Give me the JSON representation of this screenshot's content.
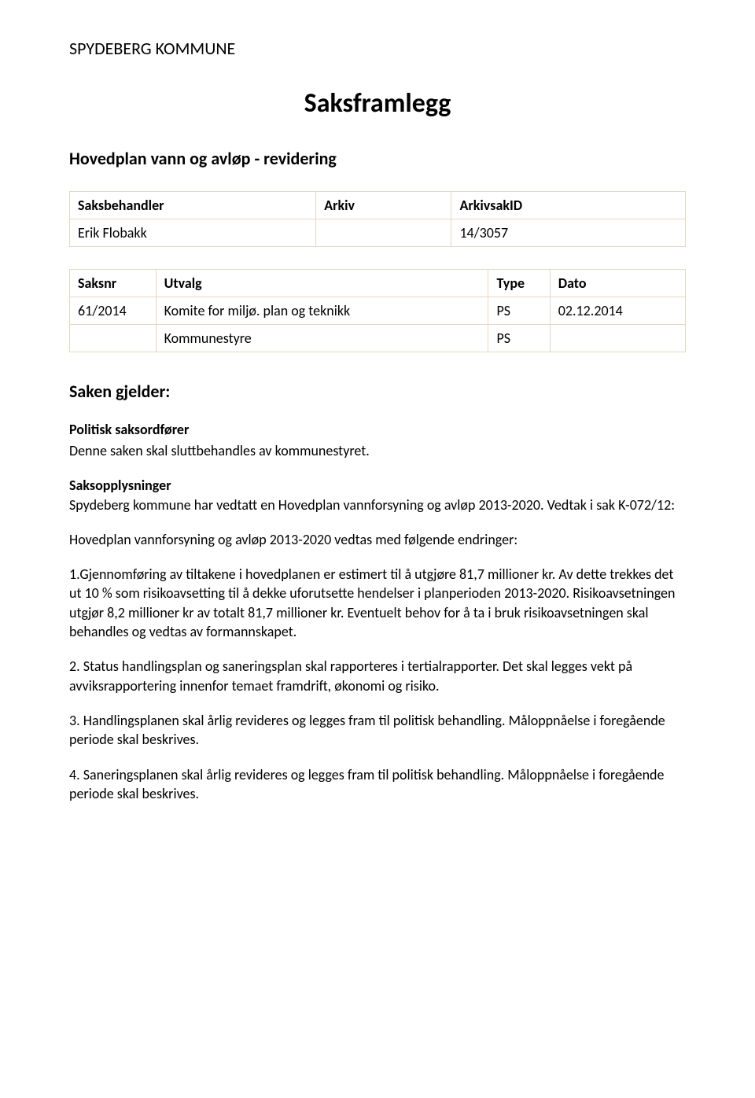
{
  "org_name": "SPYDEBERG KOMMUNE",
  "doc_title": "Saksframlegg",
  "subject_title": "Hovedplan vann og avløp - revidering",
  "table1": {
    "headers": [
      "Saksbehandler",
      "Arkiv",
      "ArkivsakID"
    ],
    "row": [
      "Erik Flobakk",
      "",
      "14/3057"
    ]
  },
  "table2": {
    "headers": [
      "Saksnr",
      "Utvalg",
      "Type",
      "Dato"
    ],
    "rows": [
      [
        "61/2014",
        "Komite for miljø. plan og teknikk",
        "PS",
        "02.12.2014"
      ],
      [
        "",
        "Kommunestyre",
        "PS",
        ""
      ]
    ]
  },
  "section_heading": "Saken gjelder:",
  "politisk_heading": "Politisk saksordfører",
  "politisk_body": "Denne saken skal sluttbehandles av kommunestyret.",
  "sakso_heading": "Saksopplysninger",
  "sakso_line1": "Spydeberg kommune har vedtatt en Hovedplan vannforsyning og avløp 2013-2020. Vedtak i sak K-072/12:",
  "hp_line": "Hovedplan vannforsyning og avløp 2013-2020 vedtas med følgende endringer:",
  "item1": "1.Gjennomføring av tiltakene i hovedplanen er estimert til å utgjøre 81,7 millioner kr. Av dette trekkes det ut 10 % som risikoavsetting til å dekke uforutsette hendelser i planperioden 2013-2020. Risikoavsetningen utgjør 8,2 millioner kr av totalt 81,7 millioner kr. Eventuelt behov for å ta i bruk risikoavsetningen skal behandles og vedtas av formannskapet.",
  "item2": "2. Status handlingsplan og saneringsplan skal rapporteres i tertialrapporter. Det skal legges vekt på avviksrapportering innenfor temaet framdrift, økonomi og risiko.",
  "item3": "3. Handlingsplanen skal årlig revideres og legges fram til politisk behandling. Måloppnåelse i foregående periode skal beskrives.",
  "item4": "4. Saneringsplanen skal årlig revideres og legges fram til politisk behandling. Måloppnåelse i foregående periode skal beskrives.",
  "colors": {
    "text": "#000000",
    "background": "#ffffff",
    "table_border": "#e5d7c5"
  },
  "typography": {
    "body_fontsize": 18,
    "title_fontsize": 34,
    "heading_fontsize": 22,
    "font_family": "Calibri"
  }
}
